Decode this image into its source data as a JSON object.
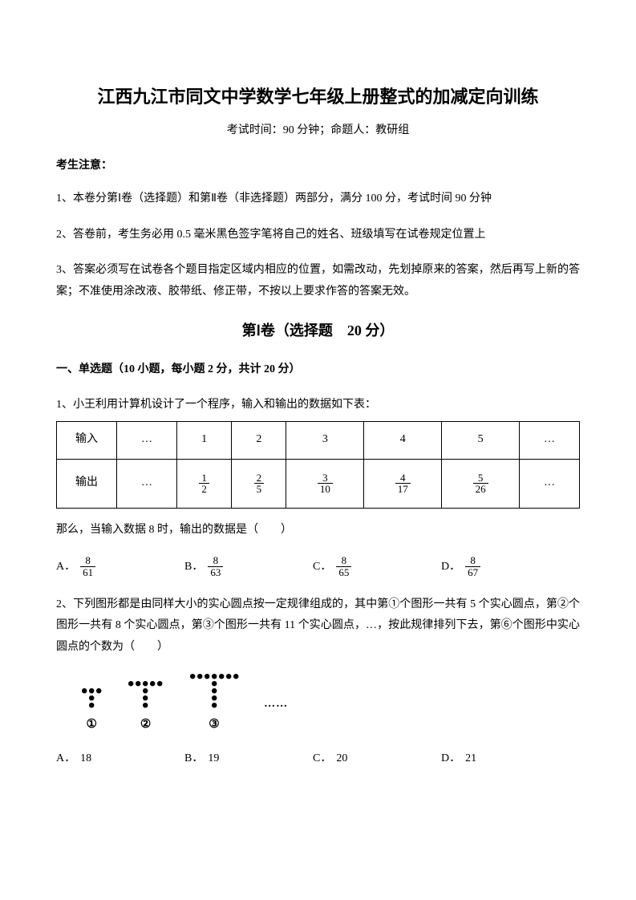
{
  "title": "江西九江市同文中学数学七年级上册整式的加减定向训练",
  "subtitle": "考试时间：90 分钟；命题人：教研组",
  "notice_head": "考生注意：",
  "notices": [
    "1、本卷分第Ⅰ卷（选择题）和第Ⅱ卷（非选择题）两部分，满分 100 分，考试时间 90 分钟",
    "2、答卷前，考生务必用 0.5 毫米黑色签字笔将自己的姓名、班级填写在试卷规定位置上",
    "3、答案必须写在试卷各个题目指定区域内相应的位置，如需改动，先划掉原来的答案，然后再写上新的答案；不准使用涂改液、胶带纸、修正带，不按以上要求作答的答案无效。"
  ],
  "section1": "第Ⅰ卷（选择题　20 分）",
  "part1_head": "一、单选题（10 小题，每小题 2 分，共计 20 分）",
  "q1": {
    "stem": "1、小王利用计算机设计了一个程序，输入和输出的数据如下表：",
    "table": {
      "row_in_label": "输入",
      "row_out_label": "输出",
      "ellipsis": "…",
      "inputs": [
        "1",
        "2",
        "3",
        "4",
        "5"
      ],
      "outputs": [
        {
          "num": "1",
          "den": "2"
        },
        {
          "num": "2",
          "den": "5"
        },
        {
          "num": "3",
          "den": "10"
        },
        {
          "num": "4",
          "den": "17"
        },
        {
          "num": "5",
          "den": "26"
        }
      ]
    },
    "ask": "那么，当输入数据 8 时，输出的数据是（　　）",
    "options": {
      "A": {
        "num": "8",
        "den": "61"
      },
      "B": {
        "num": "8",
        "den": "63"
      },
      "C": {
        "num": "8",
        "den": "65"
      },
      "D": {
        "num": "8",
        "den": "67"
      }
    }
  },
  "q2": {
    "stem": "2、下列图形都是由同样大小的实心圆点按一定规律组成的，其中第①个图形一共有 5 个实心圆点，第②个图形一共有 8 个实心圆点，第③个图形一共有 11 个实心圆点，…，按此规律排列下去，第⑥个图形中实心圆点的个数为（　　）",
    "fig_labels": [
      "①",
      "②",
      "③"
    ],
    "dots": "……",
    "options": {
      "A": "18",
      "B": "19",
      "C": "20",
      "D": "21"
    },
    "dot_color": "#000000",
    "dot_radius": 3.2,
    "dot_spacing": 9
  }
}
